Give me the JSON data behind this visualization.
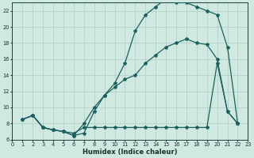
{
  "xlabel": "Humidex (Indice chaleur)",
  "bg_color": "#cfe8e0",
  "grid_color": "#b0ccc4",
  "line_color": "#1a6060",
  "xlim": [
    0,
    23
  ],
  "ylim": [
    6,
    23
  ],
  "yticks": [
    6,
    8,
    10,
    12,
    14,
    16,
    18,
    20,
    22
  ],
  "xtick_labels": [
    "0",
    "1",
    "2",
    "3",
    "4",
    "5",
    "6",
    "7",
    "8",
    "9",
    "10",
    "11",
    "12",
    "13",
    "14",
    "15",
    "16",
    "17",
    "18",
    "19",
    "20",
    "21",
    "22",
    "23"
  ],
  "line_A_x": [
    1,
    2,
    3,
    4,
    5,
    6,
    7,
    8,
    9,
    10,
    11,
    12,
    13,
    14,
    15,
    16,
    17,
    18,
    19,
    20,
    21,
    22
  ],
  "line_A_y": [
    8.5,
    9.0,
    7.5,
    7.2,
    7.0,
    6.5,
    6.8,
    9.5,
    11.5,
    13.0,
    15.5,
    19.5,
    21.5,
    22.5,
    23.5,
    23.0,
    23.0,
    22.5,
    22.0,
    21.5,
    17.5,
    8.0
  ],
  "line_B_x": [
    1,
    2,
    3,
    4,
    5,
    6,
    7,
    8,
    9,
    10,
    11,
    12,
    13,
    14,
    15,
    16,
    17,
    18,
    19,
    20,
    21,
    22
  ],
  "line_B_y": [
    8.5,
    9.0,
    7.5,
    7.2,
    7.0,
    6.5,
    8.0,
    10.0,
    11.5,
    12.5,
    13.5,
    14.0,
    15.5,
    16.5,
    17.5,
    18.0,
    18.5,
    18.0,
    17.8,
    16.0,
    9.5,
    8.0
  ],
  "line_C_x": [
    1,
    2,
    3,
    4,
    5,
    6,
    7,
    8,
    9,
    10,
    11,
    12,
    13,
    14,
    15,
    16,
    17,
    18,
    19,
    20,
    21,
    22
  ],
  "line_C_y": [
    8.5,
    9.0,
    7.5,
    7.2,
    7.0,
    6.8,
    7.5,
    7.5,
    7.5,
    7.5,
    7.5,
    7.5,
    7.5,
    7.5,
    7.5,
    7.5,
    7.5,
    7.5,
    7.5,
    15.5,
    9.5,
    8.0
  ],
  "xlabel_fontsize": 6,
  "tick_fontsize": 4.8,
  "line_width": 0.9,
  "marker_size": 3.0
}
